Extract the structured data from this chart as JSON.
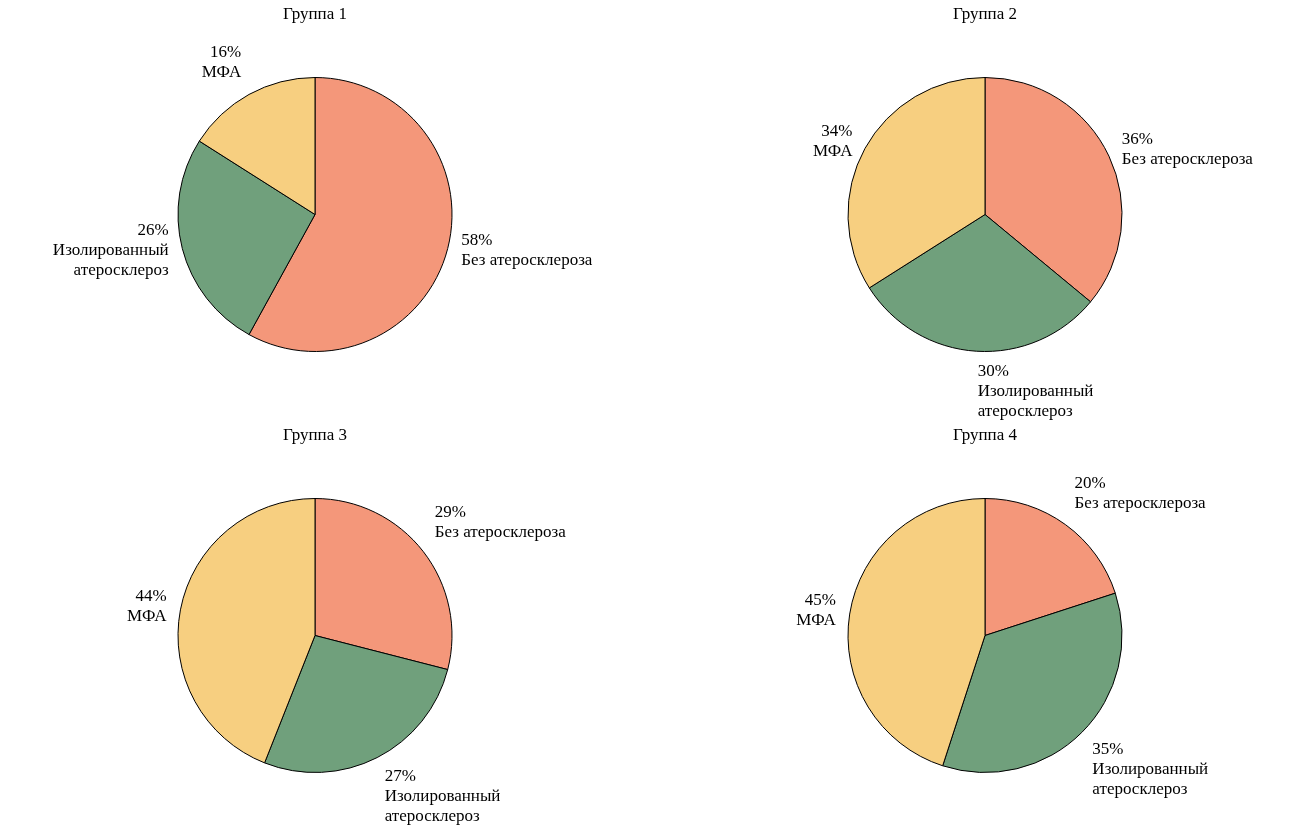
{
  "chart_data": [
    {
      "type": "pie",
      "title": "Группа 1",
      "categories": [
        "Без атеросклероза",
        "Изолированный атеросклероз",
        "МФА"
      ],
      "values": [
        58,
        26,
        16
      ],
      "value_labels": [
        "58%",
        "26%",
        "16%"
      ],
      "colors": [
        "#f4977a",
        "#70a07c",
        "#f7cf80"
      ],
      "legend": false
    },
    {
      "type": "pie",
      "title": "Группа 2",
      "categories": [
        "Без атеросклероза",
        "Изолированный атеросклероз",
        "МФА"
      ],
      "values": [
        36,
        30,
        34
      ],
      "value_labels": [
        "36%",
        "30%",
        "34%"
      ],
      "colors": [
        "#f4977a",
        "#70a07c",
        "#f7cf80"
      ],
      "legend": false
    },
    {
      "type": "pie",
      "title": "Группа 3",
      "categories": [
        "Без атеросклероза",
        "Изолированный атеросклероз",
        "МФА"
      ],
      "values": [
        29,
        27,
        44
      ],
      "value_labels": [
        "29%",
        "27%",
        "44%"
      ],
      "colors": [
        "#f4977a",
        "#70a07c",
        "#f7cf80"
      ],
      "legend": false
    },
    {
      "type": "pie",
      "title": "Группа 4",
      "categories": [
        "Без атеросклероза",
        "Изолированный атеросклероз",
        "МФА"
      ],
      "values": [
        20,
        35,
        45
      ],
      "value_labels": [
        "20%",
        "35%",
        "45%"
      ],
      "colors": [
        "#f4977a",
        "#70a07c",
        "#f7cf80"
      ],
      "legend": false
    }
  ]
}
